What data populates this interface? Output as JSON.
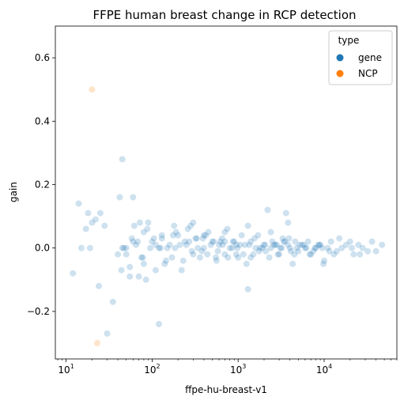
{
  "chart_data": {
    "type": "scatter",
    "title": "FFPE human breast change in RCP detection",
    "xlabel": "ffpe-hu-breast-v1",
    "ylabel": "gain",
    "xscale": "log",
    "xlim": [
      7.5,
      70000
    ],
    "ylim": [
      -0.35,
      0.7
    ],
    "xticks": [
      {
        "base": "10",
        "exp": "1"
      },
      {
        "base": "10",
        "exp": "2"
      },
      {
        "base": "10",
        "exp": "3"
      },
      {
        "base": "10",
        "exp": "4"
      }
    ],
    "xtick_values": [
      10,
      100,
      1000,
      10000
    ],
    "yticks": [
      "−0.2",
      "0.0",
      "0.2",
      "0.4",
      "0.6"
    ],
    "ytick_values": [
      -0.2,
      0.0,
      0.2,
      0.4,
      0.6
    ],
    "grid": false,
    "legend": {
      "title": "type",
      "placement": "top-right",
      "entries": [
        {
          "label": "gene",
          "color": "#1f77b4"
        },
        {
          "label": "NCP",
          "color": "#ff7f0e"
        }
      ]
    },
    "series": [
      {
        "name": "gene",
        "color": "#1f77b4",
        "x": [
          12,
          14,
          15,
          17,
          18,
          19,
          20,
          22,
          24,
          25,
          28,
          30,
          35,
          40,
          42,
          44,
          45,
          47,
          50,
          55,
          60,
          65,
          70,
          72,
          75,
          80,
          85,
          90,
          100,
          110,
          120,
          130,
          140,
          150,
          170,
          180,
          200,
          220,
          250,
          280,
          300,
          330,
          360,
          400,
          450,
          500,
          550,
          600,
          650,
          700,
          750,
          800,
          900,
          1000,
          1100,
          1200,
          1300,
          1400,
          1500,
          1700,
          1800,
          2000,
          2200,
          2300,
          2500,
          2800,
          3000,
          3300,
          3600,
          4000,
          4300,
          4600,
          5000,
          5500,
          6000,
          6500,
          7000,
          8000,
          9000,
          10000,
          11000,
          12000,
          14000,
          16000,
          18000,
          20000,
          22000,
          25000,
          28000,
          32000,
          36000,
          40000,
          47000,
          45,
          60,
          80,
          95,
          110,
          130,
          160,
          190,
          230,
          270,
          320,
          380,
          420,
          480,
          560,
          620,
          700,
          850,
          950,
          1050,
          1250,
          1600,
          1900,
          2100,
          2600,
          3100,
          3500,
          3900,
          4500,
          5200,
          6200,
          7500,
          8500,
          9500,
          13000,
          50,
          58,
          68,
          78,
          88,
          105,
          125,
          145,
          175,
          210,
          240,
          290,
          340,
          390,
          440,
          520,
          580,
          660,
          760,
          870,
          980,
          1150,
          1350,
          1550,
          1750,
          2050,
          2400,
          2700,
          2900,
          3200,
          3400,
          3800,
          4100,
          4800,
          5800,
          6800,
          7800,
          8800,
          11500,
          15000,
          21000,
          26000,
          120,
          400,
          1300,
          2400,
          3800,
          9800,
          700,
          950,
          1400,
          260,
          300,
          185,
          55,
          62
        ],
        "y": [
          -0.08,
          0.14,
          0.0,
          0.06,
          0.11,
          0.0,
          0.08,
          0.09,
          -0.12,
          0.11,
          0.07,
          -0.27,
          -0.17,
          -0.02,
          0.16,
          -0.07,
          0.28,
          0.0,
          -0.02,
          -0.09,
          0.16,
          0.01,
          -0.09,
          0.08,
          -0.03,
          0.05,
          -0.1,
          0.08,
          0.02,
          -0.07,
          -0.24,
          0.03,
          -0.05,
          0.0,
          -0.03,
          0.07,
          0.04,
          -0.07,
          0.01,
          0.07,
          -0.02,
          0.03,
          -0.03,
          0.0,
          0.05,
          0.02,
          -0.03,
          0.01,
          0.03,
          -0.02,
          0.06,
          0.0,
          0.02,
          -0.03,
          0.04,
          0.01,
          -0.13,
          0.02,
          -0.02,
          0.04,
          0.0,
          0.01,
          0.12,
          -0.03,
          0.02,
          0.01,
          -0.02,
          0.03,
          0.11,
          0.0,
          -0.05,
          0.02,
          -0.01,
          0.01,
          0.0,
          0.02,
          -0.02,
          0.0,
          0.01,
          -0.04,
          0.0,
          0.02,
          -0.01,
          0.0,
          0.01,
          0.02,
          -0.02,
          0.01,
          0.0,
          -0.01,
          0.02,
          -0.01,
          0.01,
          0.0,
          0.02,
          -0.05,
          0.0,
          0.01,
          0.04,
          0.01,
          0.05,
          -0.04,
          0.02,
          0.03,
          -0.01,
          0.04,
          0.01,
          -0.04,
          0.02,
          0.02,
          0.0,
          -0.02,
          0.01,
          -0.05,
          0.0,
          0.0,
          -0.01,
          0.01,
          0.0,
          0.02,
          0.03,
          -0.02,
          0.01,
          0.0,
          -0.01,
          0.01,
          0.0,
          -0.02,
          0.0,
          0.03,
          0.02,
          -0.03,
          0.06,
          0.03,
          0.0,
          -0.04,
          0.04,
          0.01,
          0.02,
          -0.01,
          0.0,
          0.03,
          -0.02,
          0.02,
          -0.01,
          0.01,
          -0.03,
          0.02,
          0.0,
          -0.02,
          0.01,
          0.03,
          -0.01,
          0.01,
          0.0,
          0.01,
          -0.02,
          0.0,
          0.02,
          0.01,
          -0.01,
          0.0,
          0.01,
          -0.02,
          0.0,
          0.01,
          -0.01,
          0.03,
          0.0,
          -0.02,
          0.0,
          0.04,
          0.07,
          0.05,
          0.08,
          -0.05,
          0.05,
          0.01,
          -0.03,
          0.06,
          0.08,
          0.0,
          -0.06,
          0.07
        ]
      },
      {
        "name": "NCP",
        "color": "#ff7f0e",
        "x": [
          20,
          23
        ],
        "y": [
          0.5,
          -0.3
        ]
      }
    ]
  }
}
